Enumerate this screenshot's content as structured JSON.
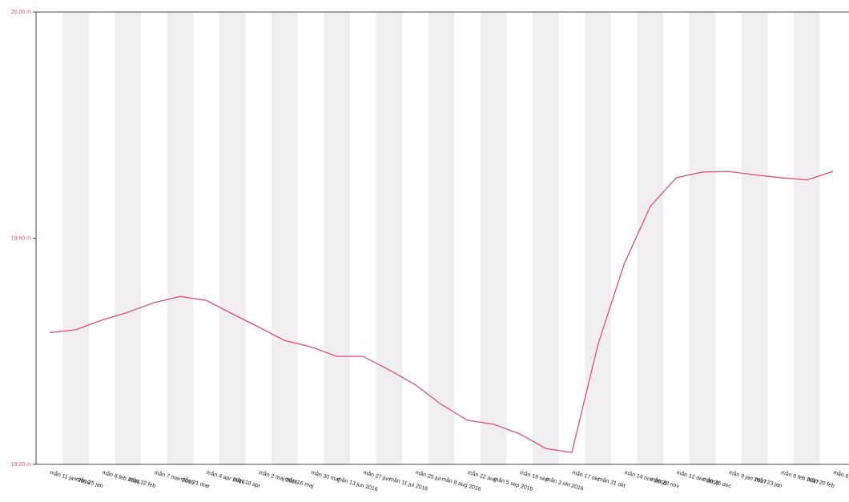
{
  "chart_data": {
    "type": "line",
    "categories": [
      "mån 11 jan 2016",
      "mån 25 jan",
      "mån 8 feb 2016",
      "mån 22 feb",
      "mån 7 mar 2016",
      "mån 21 mar",
      "mån 4 apr 2016",
      "mån 18 apr",
      "mån 2 maj 2016",
      "mån 16 maj",
      "mån 30 maj",
      "mån 13 jun 2016",
      "mån 27 jun",
      "mån 11 jul 2016",
      "mån 25 jul",
      "mån 8 aug 2016",
      "mån 22 aug",
      "mån 5 sep 2016",
      "mån 19 sep",
      "mån 3 okt 2016",
      "mån 17 okt",
      "mån 31 okt",
      "mån 14 nov 2016",
      "mån 28 nov",
      "mån 12 dec 2016",
      "mån 26 dec",
      "mån 9 jan 2017",
      "mån 23 jan",
      "mån 6 feb 2017",
      "mån 20 feb",
      "mån 6 ma"
    ],
    "series": [
      {
        "color": "#e0506e",
        "values": [
          19.433,
          19.438,
          19.455,
          19.469,
          19.486,
          19.497,
          19.49,
          19.466,
          19.443,
          19.419,
          19.408,
          19.391,
          19.391,
          19.367,
          19.341,
          19.306,
          19.278,
          19.271,
          19.254,
          19.228,
          19.221,
          19.412,
          19.554,
          19.656,
          19.707,
          19.717,
          19.718,
          19.712,
          19.707,
          19.703,
          19.718
        ]
      }
    ],
    "ylim": [
      19.2,
      20.0
    ],
    "yticks": [
      {
        "value": 19.2,
        "label": "19,20 m"
      },
      {
        "value": 19.6,
        "label": "19,60 m"
      },
      {
        "value": 20.0,
        "label": "20,00 m"
      }
    ],
    "tick_color": "#e0506e"
  }
}
